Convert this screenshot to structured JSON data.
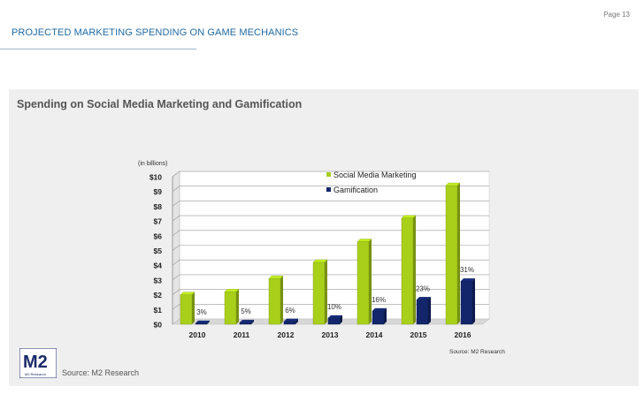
{
  "page": {
    "number_label": "Page 13"
  },
  "document": {
    "title": "PROJECTED MARKETING SPENDING ON GAME MECHANICS"
  },
  "panel": {
    "title": "Spending on Social Media Marketing and Gamification",
    "footer_source": "Source: M2 Research",
    "logo": {
      "text": "M2",
      "subtext": "M2 Research"
    }
  },
  "colors": {
    "accent_title": "#1f6aa5",
    "social": "#a8cf1a",
    "gamification": "#13266b"
  },
  "chart_data": {
    "type": "bar",
    "title": "Spending on Social Media Marketing and Gamification",
    "unit_note": "(in billions)",
    "source_note": "Source: M2 Research",
    "categories": [
      "2010",
      "2011",
      "2012",
      "2013",
      "2014",
      "2015",
      "2016"
    ],
    "y_ticks": [
      "$0",
      "$1",
      "$2",
      "$3",
      "$4",
      "$5",
      "$6",
      "$7",
      "$8",
      "$9",
      "$10"
    ],
    "ylim": [
      0,
      10
    ],
    "series": [
      {
        "name": "Social Media Marketing",
        "color": "#a8cf1a",
        "values": [
          2.0,
          2.2,
          3.1,
          4.2,
          5.6,
          7.2,
          9.4
        ]
      },
      {
        "name": "Gamification",
        "color": "#13266b",
        "values": [
          0.06,
          0.11,
          0.19,
          0.42,
          0.9,
          1.66,
          2.92
        ]
      }
    ],
    "data_labels": [
      "3%",
      "5%",
      "6%",
      "10%",
      "16%",
      "23%",
      "31%"
    ],
    "legend_position": "top-right",
    "grid": true
  }
}
